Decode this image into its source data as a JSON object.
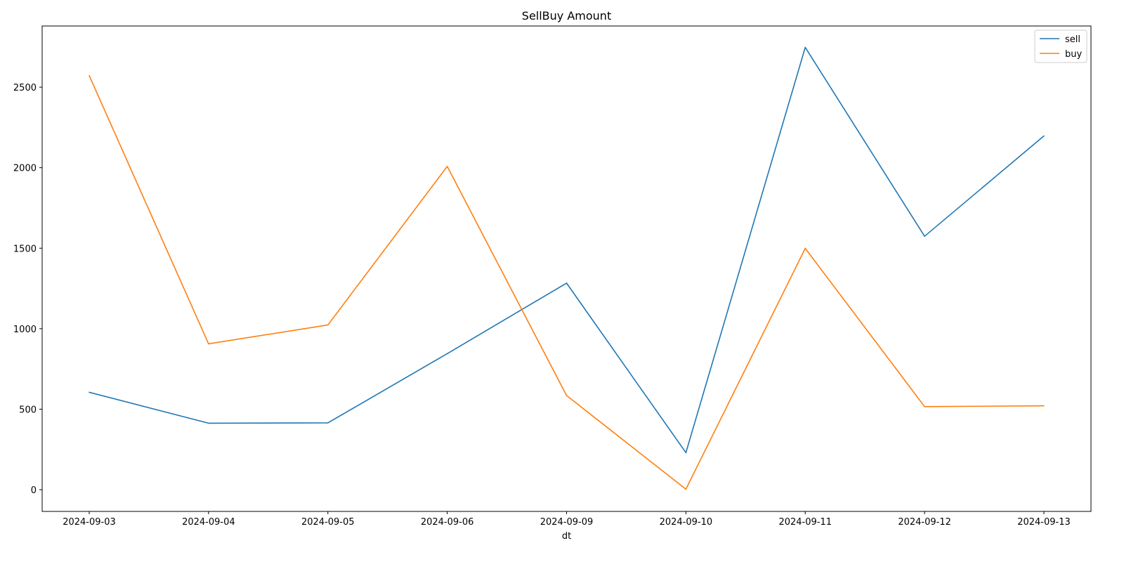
{
  "chart_data": {
    "type": "line",
    "title": "SellBuy Amount",
    "xlabel": "dt",
    "ylabel": "",
    "categories": [
      "2024-09-03",
      "2024-09-04",
      "2024-09-05",
      "2024-09-06",
      "2024-09-09",
      "2024-09-10",
      "2024-09-11",
      "2024-09-12",
      "2024-09-13"
    ],
    "ylim": [
      -135,
      2880
    ],
    "yticks": [
      0,
      500,
      1000,
      1500,
      2000,
      2500
    ],
    "series": [
      {
        "name": "sell",
        "color": "#1f77b4",
        "values": [
          605,
          413,
          415,
          845,
          1283,
          230,
          2747,
          1574,
          2197
        ]
      },
      {
        "name": "buy",
        "color": "#ff7f0e",
        "values": [
          2572,
          906,
          1023,
          2008,
          585,
          3,
          1499,
          516,
          521
        ]
      }
    ],
    "grid": false,
    "legend_position": "upper right"
  }
}
